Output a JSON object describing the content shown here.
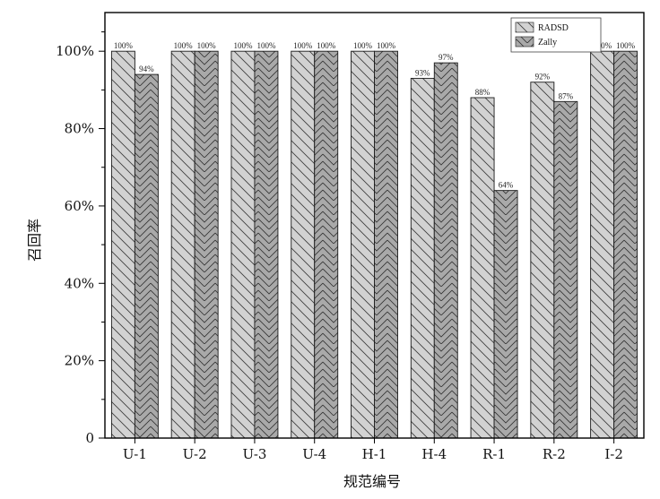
{
  "chart_data": {
    "type": "bar",
    "title": "",
    "xlabel": "规范编号",
    "ylabel": "召回率",
    "categories": [
      "U-1",
      "U-2",
      "U-3",
      "U-4",
      "H-1",
      "H-4",
      "R-1",
      "R-2",
      "I-2"
    ],
    "series": [
      {
        "name": "RADSD",
        "values": [
          100,
          100,
          100,
          100,
          100,
          93,
          88,
          92,
          100
        ],
        "labels": [
          "100%",
          "100%",
          "100%",
          "100%",
          "100%",
          "93%",
          "88%",
          "92%",
          "100%"
        ],
        "color": "#d2d2d2",
        "hatch": "backslash"
      },
      {
        "name": "Zally",
        "values": [
          94,
          100,
          100,
          100,
          100,
          97,
          64,
          87,
          100
        ],
        "labels": [
          "94%",
          "100%",
          "100%",
          "100%",
          "100%",
          "97%",
          "64%",
          "87%",
          "100%"
        ],
        "color": "#a9a9a9",
        "hatch": "chevron"
      }
    ],
    "ylim": [
      0,
      110
    ],
    "yticks": [
      0,
      20,
      40,
      60,
      80,
      100
    ],
    "ytick_labels": [
      "0",
      "20%",
      "40%",
      "60%",
      "80%",
      "100%"
    ],
    "grid": false,
    "legend": "top-right"
  }
}
